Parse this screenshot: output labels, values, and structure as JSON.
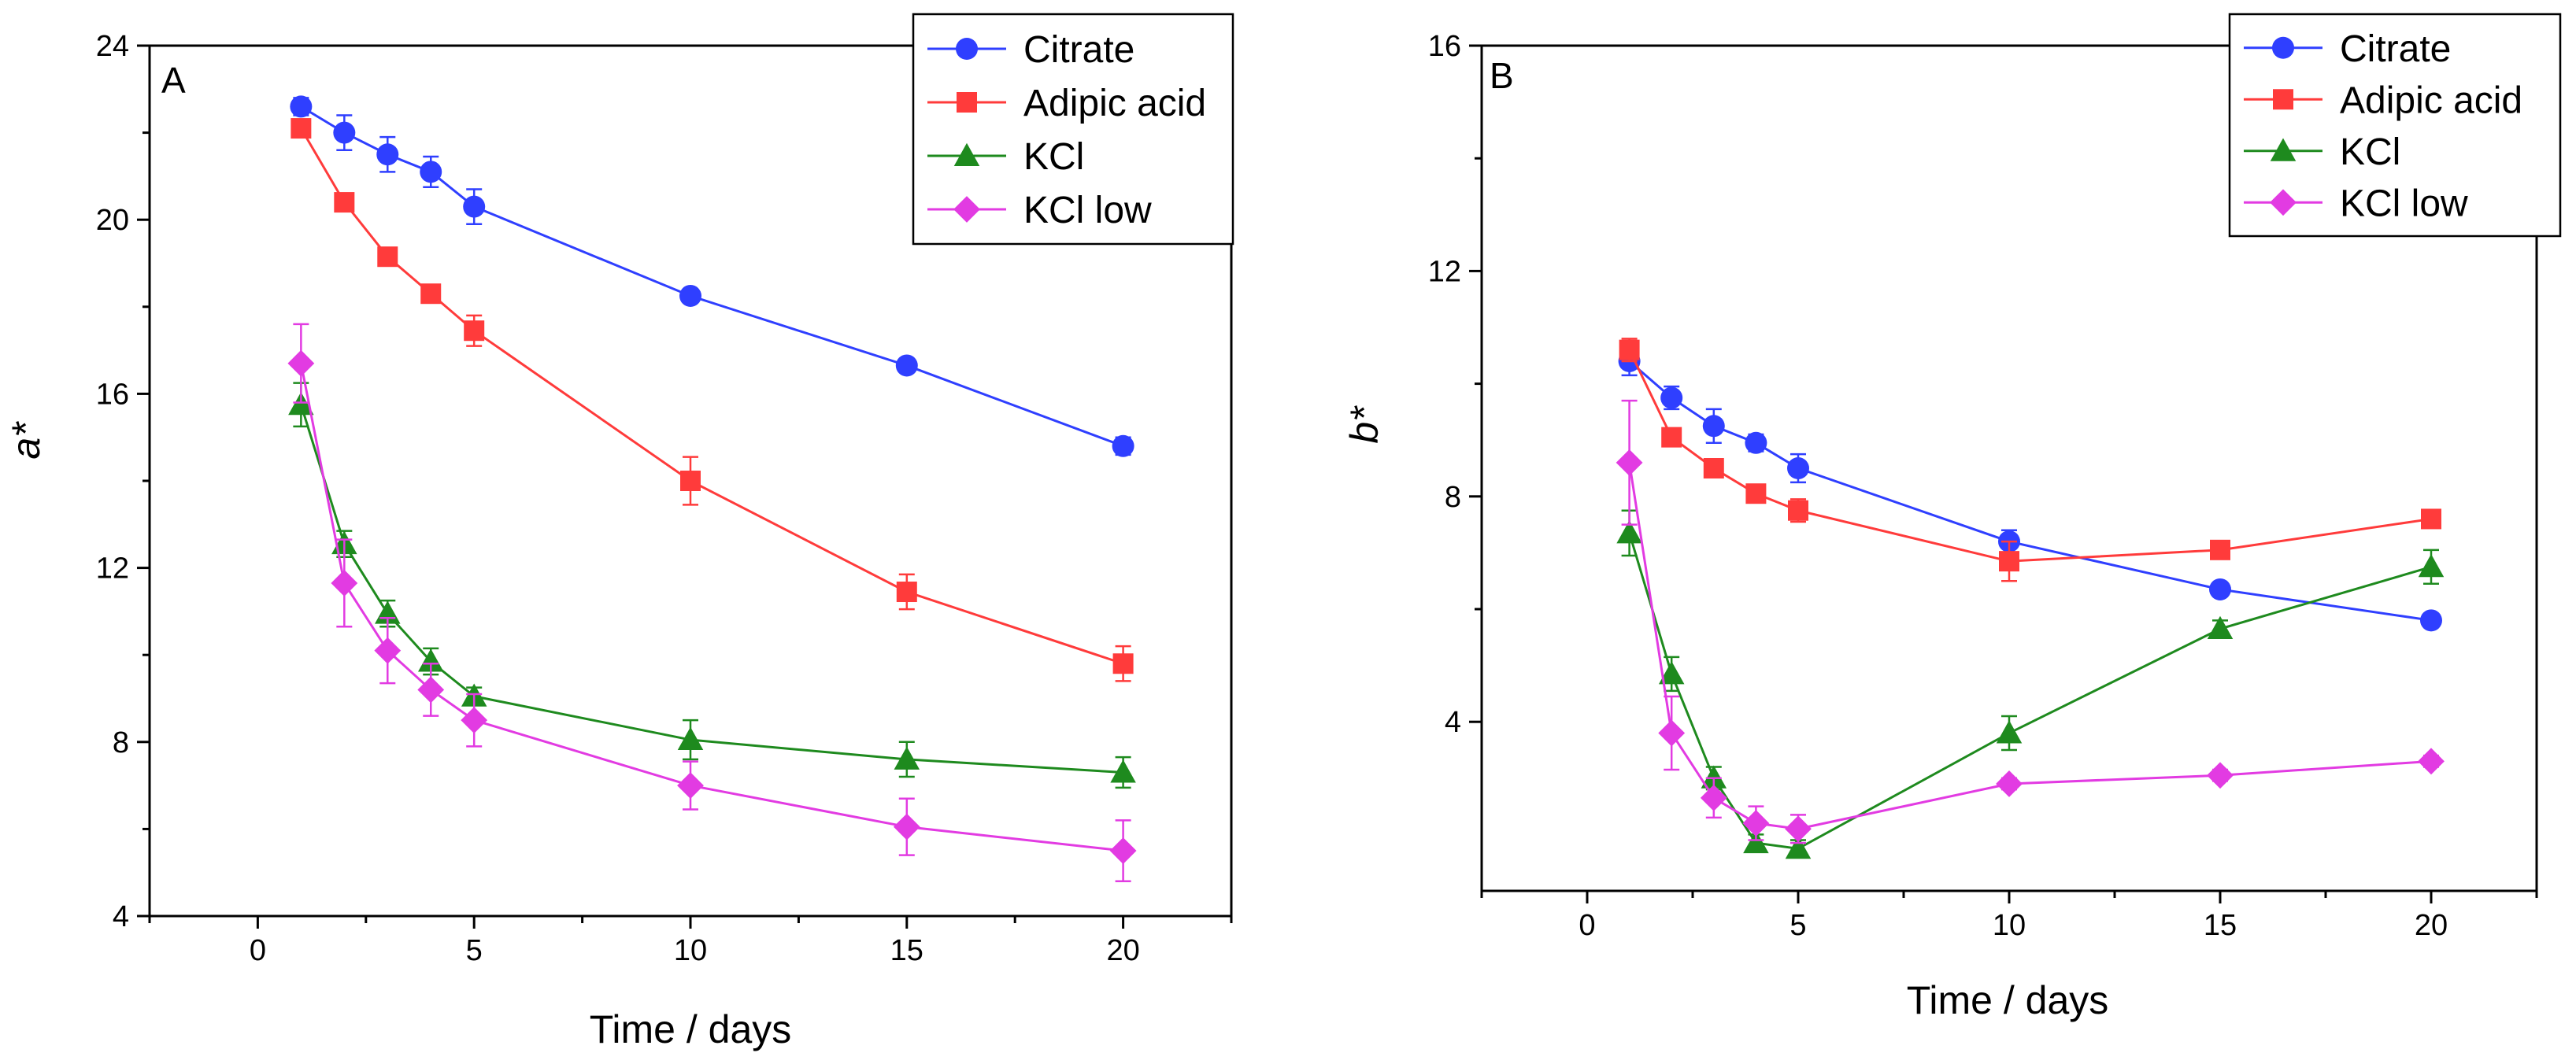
{
  "chart_data": [
    {
      "type": "line",
      "panel_label": "A",
      "xlabel": "Time / days",
      "ylabel": "a*",
      "xlim": [
        -2.5,
        22.5
      ],
      "ylim": [
        4,
        24
      ],
      "xticks": [
        0,
        5,
        10,
        15,
        20
      ],
      "yticks": [
        4,
        8,
        12,
        16,
        20,
        24
      ],
      "legend_position": "top-right",
      "x": [
        1,
        2,
        3,
        4,
        5,
        10,
        15,
        20
      ],
      "series": [
        {
          "name": "Citrate",
          "color": "#2f3fff",
          "marker": "circle",
          "values": [
            22.6,
            22.0,
            21.5,
            21.1,
            20.3,
            18.25,
            16.65,
            14.8
          ],
          "errors": [
            0.2,
            0.4,
            0.4,
            0.35,
            0.4,
            0.15,
            0.15,
            0.2
          ]
        },
        {
          "name": "Adipic acid",
          "color": "#ff3b3b",
          "marker": "square",
          "values": [
            22.1,
            20.4,
            19.15,
            18.3,
            17.45,
            14.0,
            11.45,
            9.8
          ],
          "errors": [
            0.2,
            0.15,
            0.15,
            0.15,
            0.35,
            0.55,
            0.4,
            0.4
          ]
        },
        {
          "name": "KCl",
          "color": "#1e8a1e",
          "marker": "triangle",
          "values": [
            15.75,
            12.55,
            10.95,
            9.85,
            9.05,
            8.05,
            7.6,
            7.3
          ],
          "errors": [
            0.5,
            0.3,
            0.3,
            0.3,
            0.2,
            0.45,
            0.4,
            0.35
          ]
        },
        {
          "name": "KCl low",
          "color": "#e23be2",
          "marker": "diamond",
          "values": [
            16.7,
            11.65,
            10.1,
            9.2,
            8.5,
            7.0,
            6.05,
            5.5
          ],
          "errors": [
            0.9,
            1.0,
            0.75,
            0.6,
            0.6,
            0.55,
            0.65,
            0.7
          ]
        }
      ]
    },
    {
      "type": "line",
      "panel_label": "B",
      "xlabel": "Time / days",
      "ylabel": "b*",
      "xlim": [
        -2.5,
        22.5
      ],
      "ylim": [
        1,
        16
      ],
      "xticks": [
        0,
        5,
        10,
        15,
        20
      ],
      "yticks": [
        4,
        8,
        12,
        16
      ],
      "legend_position": "top-right",
      "x": [
        1,
        2,
        3,
        4,
        5,
        10,
        15,
        20
      ],
      "series": [
        {
          "name": "Citrate",
          "color": "#2f3fff",
          "marker": "circle",
          "values": [
            10.4,
            9.75,
            9.25,
            8.95,
            8.5,
            7.2,
            6.35,
            5.8
          ],
          "errors": [
            0.25,
            0.2,
            0.3,
            0.15,
            0.25,
            0.2,
            0.1,
            0.1
          ]
        },
        {
          "name": "Adipic acid",
          "color": "#ff3b3b",
          "marker": "square",
          "values": [
            10.6,
            9.05,
            8.5,
            8.05,
            7.75,
            6.85,
            7.05,
            7.6
          ],
          "errors": [
            0.2,
            0.15,
            0.15,
            0.15,
            0.2,
            0.35,
            0.15,
            0.15
          ]
        },
        {
          "name": "KCl",
          "color": "#1e8a1e",
          "marker": "triangle",
          "values": [
            7.35,
            4.85,
            3.0,
            1.85,
            1.75,
            3.8,
            5.65,
            6.75
          ],
          "errors": [
            0.4,
            0.3,
            0.2,
            0.15,
            0.15,
            0.3,
            0.15,
            0.3
          ]
        },
        {
          "name": "KCl low",
          "color": "#e23be2",
          "marker": "diamond",
          "values": [
            8.6,
            3.8,
            2.65,
            2.2,
            2.1,
            2.9,
            3.05,
            3.3
          ],
          "errors": [
            1.1,
            0.65,
            0.35,
            0.3,
            0.25,
            0.1,
            0.1,
            0.1
          ]
        }
      ]
    }
  ]
}
